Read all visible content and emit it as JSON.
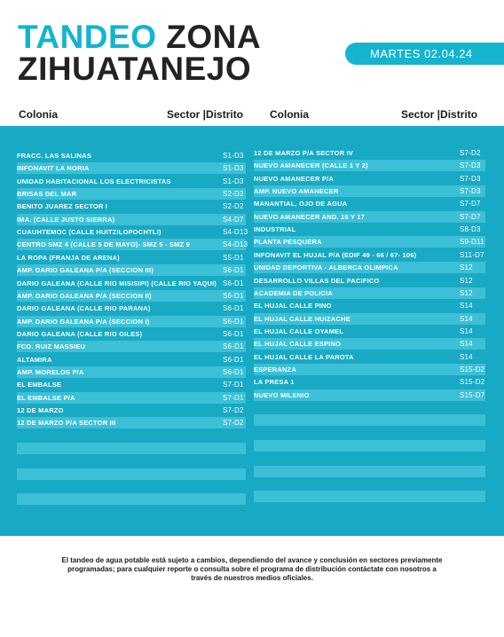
{
  "header": {
    "title_word1": "TANDEO",
    "title_word2": "ZONA",
    "title_line2": "ZIHUATANEJO",
    "date": "MARTES 02.04.24"
  },
  "columns": {
    "colonia": "Colonia",
    "sector": "Sector |Distrito"
  },
  "left_rows": [
    {
      "name": "FRACC. LAS SALINAS",
      "code": "S1-D3"
    },
    {
      "name": "INFONAVIT LA NORIA",
      "code": "S1-D3"
    },
    {
      "name": "UNIDAD HABITACIONAL LOS ELECTRICISTAS",
      "code": "S1-D3"
    },
    {
      "name": "BRISAS DEL MAR",
      "code": "S2-D2"
    },
    {
      "name": "BENITO JUAREZ SECTOR I",
      "code": "S2-D2"
    },
    {
      "name": "IMA. (CALLE JUSTO SIERRA)",
      "code": "S4-D7"
    },
    {
      "name": "CUAUHTEMOC (CALLE HUITZILOPOCHTLI)",
      "code": "S4-D13"
    },
    {
      "name": "CENTRO SMZ 4 (CALLE 5 DE MAYO)- SMZ 5 - SMZ 9",
      "code": "S4-D13"
    },
    {
      "name": "LA ROPA (FRANJA DE ARENA)",
      "code": "S5-D1"
    },
    {
      "name": "AMP. DARIO GALEANA P/A (SECCION III)",
      "code": "S6-D1"
    },
    {
      "name": "DARIO GALEANA (CALLE RIO MISISIPI) (CALLE RIO YAQUI)",
      "code": "S6-D1"
    },
    {
      "name": "AMP. DARIO GALEANA P/A (SECCION II)",
      "code": "S6-D1"
    },
    {
      "name": "DARIO GALEANA (CALLE RIO PARANA)",
      "code": "S6-D1"
    },
    {
      "name": "AMP. DARIO GALEANA P/A (SECCION I)",
      "code": "S6-D1"
    },
    {
      "name": "DARIO GALEANA (CALLE RIO GILES)",
      "code": "S6-D1"
    },
    {
      "name": "FCO. RUIZ MASSIEU",
      "code": "S6-D1"
    },
    {
      "name": "ALTAMIRA",
      "code": "S6-D1"
    },
    {
      "name": "AMP. MORELOS P/A",
      "code": "S6-D1"
    },
    {
      "name": "EL EMBALSE",
      "code": "S7-D1"
    },
    {
      "name": " EL EMBALSE P/A",
      "code": "S7-D1"
    },
    {
      "name": "12 DE MARZO",
      "code": "S7-D2"
    },
    {
      "name": "12 DE MARZO P/A SECTOR III",
      "code": "S7-D2"
    }
  ],
  "right_rows": [
    {
      "name": "12 DE MARZO P/A SECTOR IV",
      "code": "S7-D2"
    },
    {
      "name": "NUEVO AMANECER (CALLE 1 Y 2)",
      "code": "S7-D3"
    },
    {
      "name": "NUEVO AMANECER P/A",
      "code": "S7-D3"
    },
    {
      "name": "AMP. NUEVO AMANECER",
      "code": "S7-D3"
    },
    {
      "name": "MANANTIAL, OJO DE AGUA",
      "code": "S7-D7"
    },
    {
      "name": " NUEVO AMANECER AND. 16 Y 17",
      "code": "S7-D7"
    },
    {
      "name": "INDUSTRIAL",
      "code": "S8-D3"
    },
    {
      "name": "PLANTA PESQUERA",
      "code": "S9-D11"
    },
    {
      "name": "INFONAVIT EL HUJAL P/A (EDIF 49 - 66 / 67- 106)",
      "code": "S11-D7"
    },
    {
      "name": "UNIDAD DEPORTIVA - ALBERCA OLIMPICA",
      "code": "S12"
    },
    {
      "name": "DESARROLLO VILLAS DEL PACIFICO",
      "code": "S12"
    },
    {
      "name": "ACADEMIA DE POLICIA",
      "code": "S12"
    },
    {
      "name": "EL HUJAL CALLE PINO",
      "code": "S14"
    },
    {
      "name": "EL HUJAL CALLE HUIZACHE",
      "code": "S14"
    },
    {
      "name": "EL HUJAL CALLE OYAMEL",
      "code": "S14"
    },
    {
      "name": "EL HUJAL CALLE ESPINO",
      "code": "S14"
    },
    {
      "name": "EL HUJAL CALLE LA PAROTA",
      "code": "S14"
    },
    {
      "name": "ESPERANZA",
      "code": "S15-D2"
    },
    {
      "name": "LA PRESA 1",
      "code": "S15-D2"
    },
    {
      "name": "NUEVO MILENIO",
      "code": "S15-D7"
    }
  ],
  "footer": {
    "line1": "El tandeo de agua potable está sujeto a cambios, dependiendo del avance y conclusión en sectores previamente",
    "line2": "programadas; para cualquier reporte o consulta sobre el programa de distribución contáctate con nosotros a",
    "line3": "través de nuestros medios oficiales."
  }
}
